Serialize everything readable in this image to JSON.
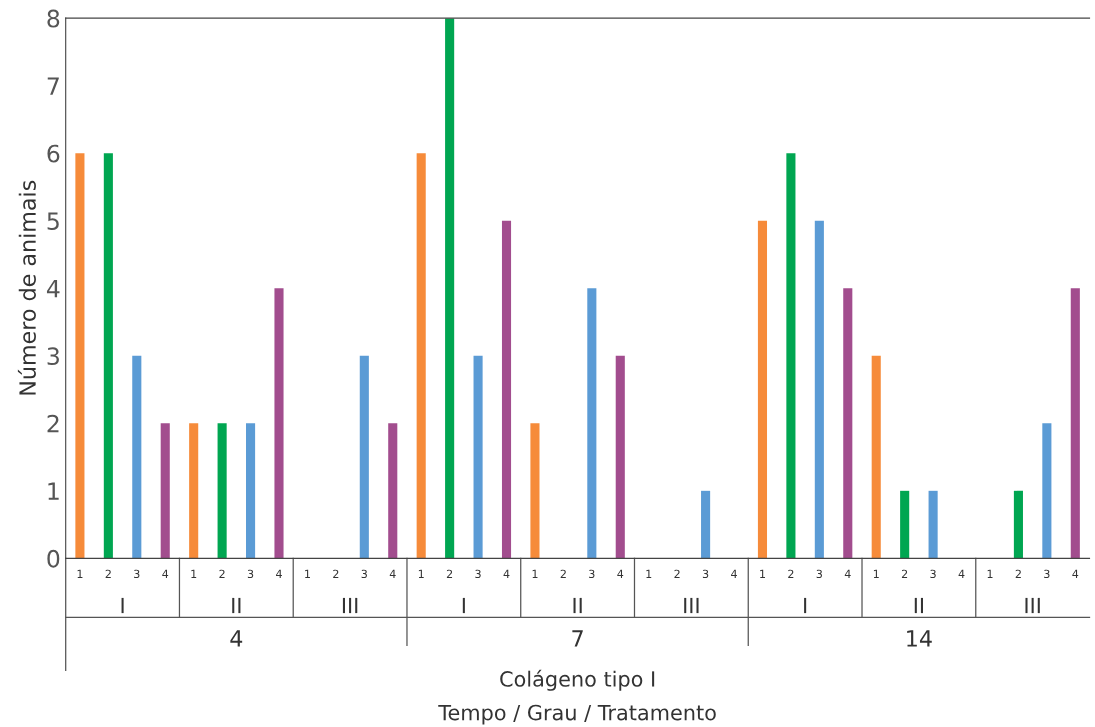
{
  "chart_data": {
    "type": "bar",
    "ylabel": "Número de animais",
    "categories": [
      "1",
      "2",
      "3",
      "4",
      "1",
      "2",
      "3",
      "4",
      "1",
      "2",
      "3",
      "4",
      "1",
      "2",
      "3",
      "4",
      "1",
      "2",
      "3",
      "4",
      "1",
      "2",
      "3",
      "4",
      "1",
      "2",
      "3",
      "4",
      "1",
      "2",
      "3",
      "4",
      "1",
      "2",
      "3",
      "4"
    ],
    "values": [
      6,
      6,
      3,
      2,
      2,
      2,
      2,
      4,
      0,
      0,
      3,
      2,
      6,
      8,
      3,
      5,
      2,
      0,
      4,
      3,
      0,
      0,
      1,
      0,
      5,
      6,
      5,
      4,
      3,
      1,
      1,
      0,
      0,
      1,
      2,
      4
    ],
    "colors": [
      "#f68b3a",
      "#00a651",
      "#5b9bd5",
      "#a24d8e",
      "#f68b3a",
      "#00a651",
      "#5b9bd5",
      "#a24d8e",
      "#f68b3a",
      "#00a651",
      "#5b9bd5",
      "#a24d8e",
      "#f68b3a",
      "#00a651",
      "#5b9bd5",
      "#a24d8e",
      "#f68b3a",
      "#00a651",
      "#5b9bd5",
      "#a24d8e",
      "#f68b3a",
      "#00a651",
      "#5b9bd5",
      "#a24d8e",
      "#f68b3a",
      "#00a651",
      "#5b9bd5",
      "#a24d8e",
      "#f68b3a",
      "#00a651",
      "#5b9bd5",
      "#a24d8e",
      "#f68b3a",
      "#00a651",
      "#5b9bd5",
      "#a24d8e"
    ],
    "ylim": [
      0,
      8
    ],
    "yticks": [
      0,
      1,
      2,
      3,
      4,
      5,
      6,
      7,
      8
    ],
    "grid": false,
    "legend": false,
    "annotations": [
      "I",
      "II",
      "III",
      "I",
      "II",
      "III",
      "I",
      "II",
      "III",
      "4",
      "7",
      "14",
      "Colágeno tipo I",
      "Tempo / Grau / Tratamento"
    ]
  }
}
